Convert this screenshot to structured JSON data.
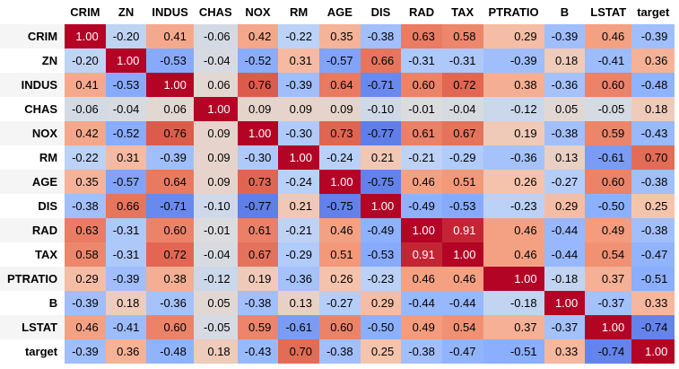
{
  "chart_data": {
    "type": "heatmap",
    "title": "",
    "colormap": "coolwarm",
    "vmin": -1,
    "vmax": 1,
    "columns": [
      "CRIM",
      "ZN",
      "INDUS",
      "CHAS",
      "NOX",
      "RM",
      "AGE",
      "DIS",
      "RAD",
      "TAX",
      "PTRATIO",
      "B",
      "LSTAT",
      "target"
    ],
    "rows": [
      "CRIM",
      "ZN",
      "INDUS",
      "CHAS",
      "NOX",
      "RM",
      "AGE",
      "DIS",
      "RAD",
      "TAX",
      "PTRATIO",
      "B",
      "LSTAT",
      "target"
    ],
    "values": [
      [
        1.0,
        -0.2,
        0.41,
        -0.06,
        0.42,
        -0.22,
        0.35,
        -0.38,
        0.63,
        0.58,
        0.29,
        -0.39,
        0.46,
        -0.39
      ],
      [
        -0.2,
        1.0,
        -0.53,
        -0.04,
        -0.52,
        0.31,
        -0.57,
        0.66,
        -0.31,
        -0.31,
        -0.39,
        0.18,
        -0.41,
        0.36
      ],
      [
        0.41,
        -0.53,
        1.0,
        0.06,
        0.76,
        -0.39,
        0.64,
        -0.71,
        0.6,
        0.72,
        0.38,
        -0.36,
        0.6,
        -0.48
      ],
      [
        -0.06,
        -0.04,
        0.06,
        1.0,
        0.09,
        0.09,
        0.09,
        -0.1,
        -0.01,
        -0.04,
        -0.12,
        0.05,
        -0.05,
        0.18
      ],
      [
        0.42,
        -0.52,
        0.76,
        0.09,
        1.0,
        -0.3,
        0.73,
        -0.77,
        0.61,
        0.67,
        0.19,
        -0.38,
        0.59,
        -0.43
      ],
      [
        -0.22,
        0.31,
        -0.39,
        0.09,
        -0.3,
        1.0,
        -0.24,
        0.21,
        -0.21,
        -0.29,
        -0.36,
        0.13,
        -0.61,
        0.7
      ],
      [
        0.35,
        -0.57,
        0.64,
        0.09,
        0.73,
        -0.24,
        1.0,
        -0.75,
        0.46,
        0.51,
        0.26,
        -0.27,
        0.6,
        -0.38
      ],
      [
        -0.38,
        0.66,
        -0.71,
        -0.1,
        -0.77,
        0.21,
        -0.75,
        1.0,
        -0.49,
        -0.53,
        -0.23,
        0.29,
        -0.5,
        0.25
      ],
      [
        0.63,
        -0.31,
        0.6,
        -0.01,
        0.61,
        -0.21,
        0.46,
        -0.49,
        1.0,
        0.91,
        0.46,
        -0.44,
        0.49,
        -0.38
      ],
      [
        0.58,
        -0.31,
        0.72,
        -0.04,
        0.67,
        -0.29,
        0.51,
        -0.53,
        0.91,
        1.0,
        0.46,
        -0.44,
        0.54,
        -0.47
      ],
      [
        0.29,
        -0.39,
        0.38,
        -0.12,
        0.19,
        -0.36,
        0.26,
        -0.23,
        0.46,
        0.46,
        1.0,
        -0.18,
        0.37,
        -0.51
      ],
      [
        -0.39,
        0.18,
        -0.36,
        0.05,
        -0.38,
        0.13,
        -0.27,
        0.29,
        -0.44,
        -0.44,
        -0.18,
        1.0,
        -0.37,
        0.33
      ],
      [
        0.46,
        -0.41,
        0.6,
        -0.05,
        0.59,
        -0.61,
        0.6,
        -0.5,
        0.49,
        0.54,
        0.37,
        -0.37,
        1.0,
        -0.74
      ],
      [
        -0.39,
        0.36,
        -0.48,
        0.18,
        -0.43,
        0.7,
        -0.38,
        0.25,
        -0.38,
        -0.47,
        -0.51,
        0.33,
        -0.74,
        1.0
      ]
    ]
  }
}
